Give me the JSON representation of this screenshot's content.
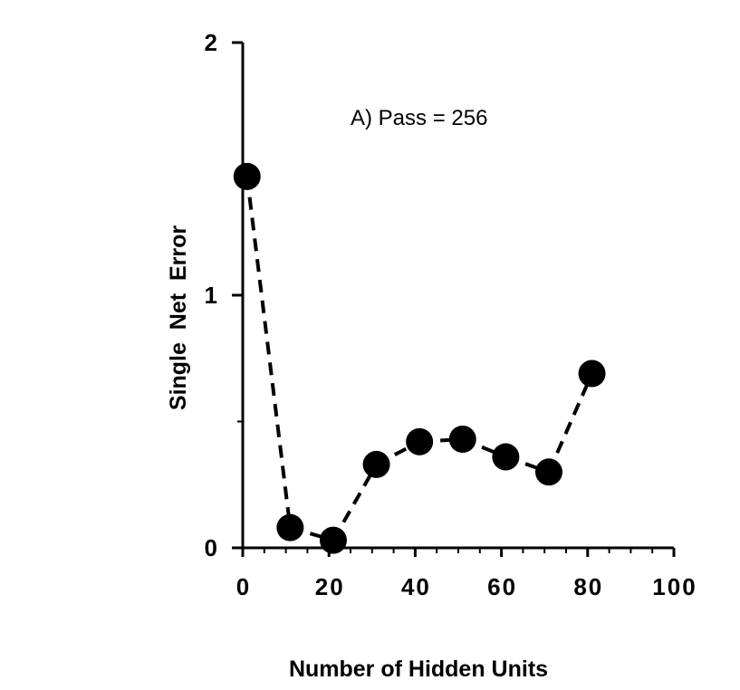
{
  "chart_data": {
    "type": "line",
    "annotation": "A) Pass = 256",
    "xlabel": "Number of Hidden Units",
    "ylabel": "Single  Net  Error",
    "xlim": [
      0,
      100
    ],
    "ylim": [
      0,
      2
    ],
    "x_ticks": [
      0,
      20,
      40,
      60,
      80,
      100
    ],
    "x_tick_labels": [
      "0",
      "20",
      "40",
      "60",
      "80",
      "100"
    ],
    "y_ticks": [
      0,
      1,
      2
    ],
    "y_tick_labels": [
      "0",
      "1",
      "2"
    ],
    "grid": false,
    "legend": false,
    "line_style": "dashed",
    "marker": "filled-circle",
    "color": "#000000",
    "series": [
      {
        "x": [
          1,
          11,
          21,
          31,
          41,
          51,
          61,
          71,
          81
        ],
        "y": [
          1.47,
          0.08,
          0.03,
          0.33,
          0.42,
          0.43,
          0.36,
          0.3,
          0.69
        ]
      }
    ]
  }
}
